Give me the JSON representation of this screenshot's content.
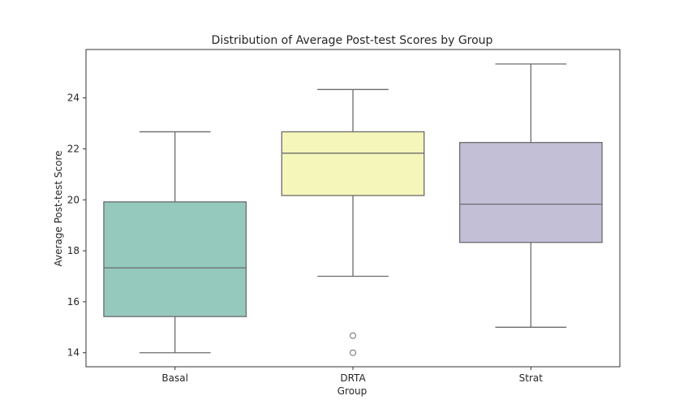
{
  "chart_data": {
    "type": "box",
    "title": "Distribution of Average Post-test Scores by Group",
    "xlabel": "Group",
    "ylabel": "Average Post-test Score",
    "ylim": [
      13.45,
      25.9
    ],
    "yticks": [
      14,
      16,
      18,
      20,
      22,
      24
    ],
    "grid": false,
    "categories": [
      "Basal",
      "DRTA",
      "Strat"
    ],
    "boxes": [
      {
        "category": "Basal",
        "whisker_low": 14.0,
        "q1": 15.42,
        "median": 17.33,
        "q3": 19.92,
        "whisker_high": 22.67,
        "outliers": [],
        "color": "#96c9be"
      },
      {
        "category": "DRTA",
        "whisker_low": 17.0,
        "q1": 20.17,
        "median": 21.83,
        "q3": 22.67,
        "whisker_high": 24.33,
        "outliers": [
          14.67,
          14.0
        ],
        "color": "#f5f6b9"
      },
      {
        "category": "Strat",
        "whisker_low": 15.0,
        "q1": 18.33,
        "median": 19.83,
        "q3": 22.25,
        "whisker_high": 25.33,
        "outliers": [],
        "color": "#c2bfd7"
      }
    ],
    "line_color": "#6b6b6b"
  }
}
